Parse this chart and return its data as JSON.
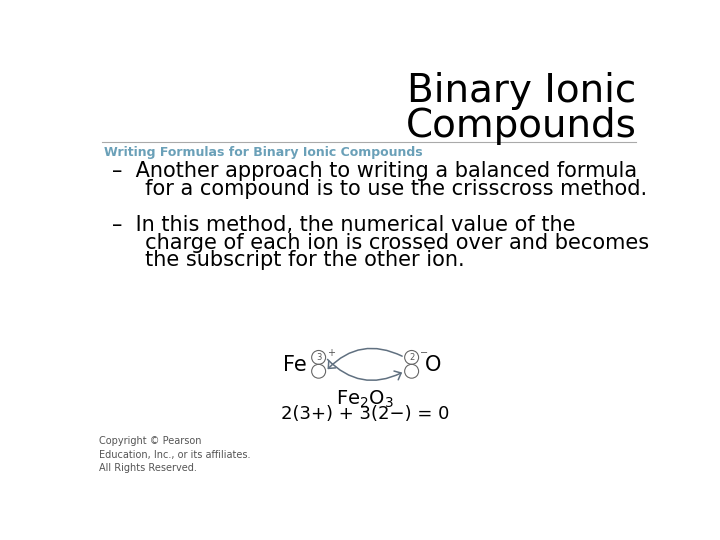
{
  "title_line1": "Binary Ionic",
  "title_line2": "Compounds",
  "subtitle": "Writing Formulas for Binary Ionic Compounds",
  "subtitle_color": "#6aa0b8",
  "bullet1_line1": "–  Another approach to writing a balanced formula",
  "bullet1_line2": "     for a compound is to use the crisscross method.",
  "bullet2_line1": "–  In this method, the numerical value of the",
  "bullet2_line2": "     charge of each ion is crossed over and becomes",
  "bullet2_line3": "     the subscript for the other ion.",
  "copyright": "Copyright © Pearson\nEducation, Inc., or its affiliates.\nAll Rights Reserved.",
  "bg_color": "#ffffff",
  "title_color": "#000000",
  "body_color": "#000000",
  "subtitle_fontsize": 9,
  "title_fontsize": 28,
  "bullet_fontsize": 15,
  "copyright_fontsize": 7
}
